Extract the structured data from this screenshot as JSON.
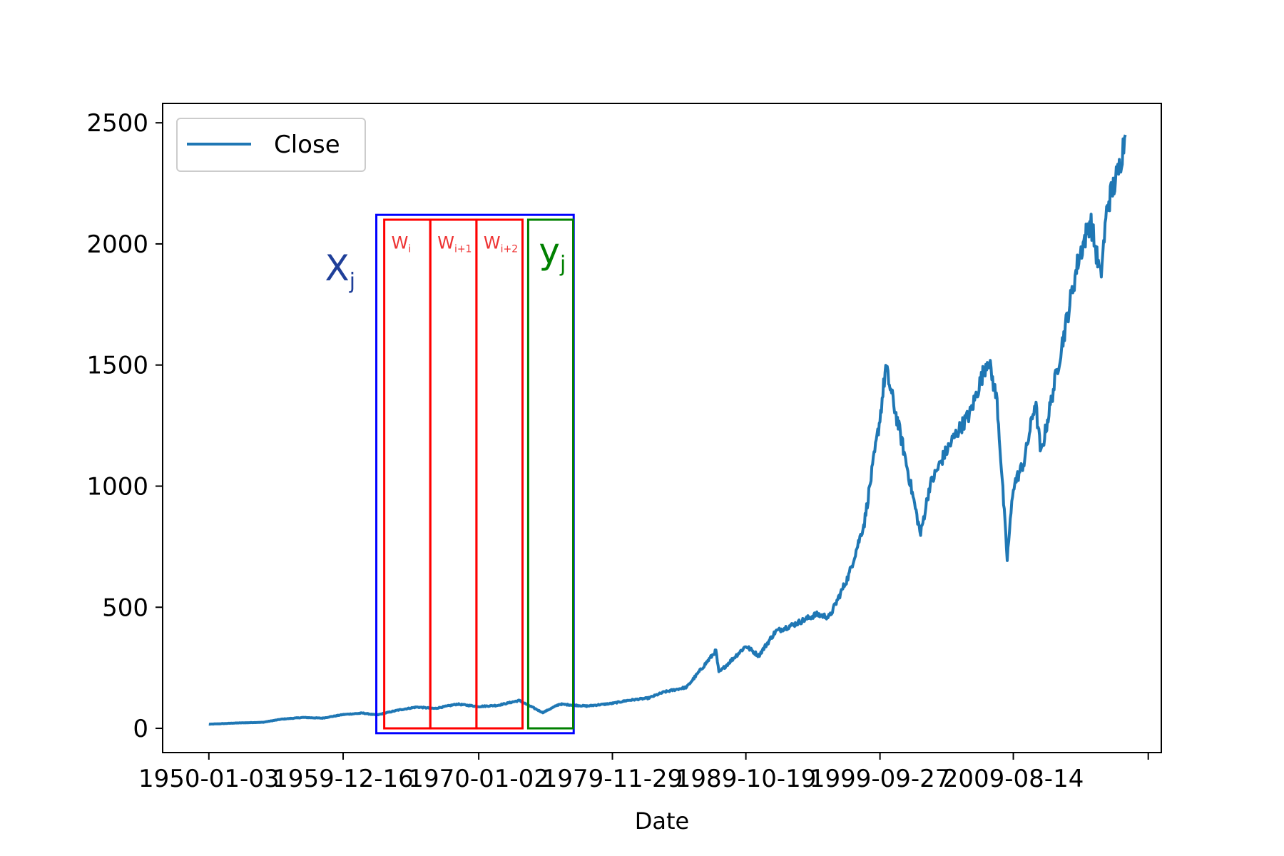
{
  "chart_data": {
    "type": "line",
    "title": "",
    "xlabel": "Date",
    "ylabel": "",
    "legend": {
      "placement": "upper-left",
      "entries": [
        "Close"
      ]
    },
    "x_ticks": [
      "1950-01-03",
      "1959-12-16",
      "1970-01-02",
      "1979-11-29",
      "1989-10-19",
      "1999-09-27",
      "2009-08-14"
    ],
    "y_ticks": [
      0,
      500,
      1000,
      1500,
      2000,
      2500
    ],
    "xlim": [
      "1946-08-01",
      "2020-08-01"
    ],
    "ylim": [
      -100,
      2580
    ],
    "grid": false,
    "colors": {
      "series": "#1f77b4",
      "window": "#ff0000",
      "input_block": "#0000ff",
      "target": "#008000",
      "input_label": "#1f3f99",
      "window_label": "#ee3333"
    },
    "series": [
      {
        "name": "Close",
        "x": [
          "1950-01-03",
          "1952-01-01",
          "1954-01-01",
          "1955-06-01",
          "1957-01-01",
          "1958-06-01",
          "1959-12-16",
          "1961-06-01",
          "1962-06-15",
          "1964-01-01",
          "1965-06-01",
          "1966-10-01",
          "1968-06-01",
          "1970-01-02",
          "1971-06-01",
          "1973-01-01",
          "1974-10-01",
          "1976-01-01",
          "1978-01-01",
          "1979-11-29",
          "1981-01-01",
          "1982-08-01",
          "1983-10-01",
          "1985-06-01",
          "1987-08-01",
          "1987-10-20",
          "1989-10-19",
          "1990-10-01",
          "1992-01-01",
          "1993-06-01",
          "1995-01-01",
          "1996-01-01",
          "1997-06-01",
          "1998-08-01",
          "1999-09-27",
          "2000-03-01",
          "2001-06-01",
          "2002-10-01",
          "2003-06-01",
          "2004-06-01",
          "2005-06-01",
          "2006-06-01",
          "2007-10-01",
          "2008-06-01",
          "2009-03-01",
          "2009-08-14",
          "2010-06-01",
          "2011-04-01",
          "2011-09-01",
          "2012-06-01",
          "2013-06-01",
          "2014-06-01",
          "2015-05-01",
          "2016-02-01",
          "2016-08-01",
          "2017-06-01",
          "2017-12-01"
        ],
        "y": [
          17,
          22,
          25,
          38,
          45,
          42,
          57,
          63,
          55,
          75,
          88,
          82,
          100,
          90,
          95,
          115,
          65,
          100,
          92,
          103,
          115,
          125,
          150,
          170,
          320,
          230,
          340,
          300,
          400,
          430,
          470,
          460,
          630,
          850,
          1280,
          1490,
          1170,
          800,
          1000,
          1120,
          1220,
          1300,
          1530,
          1350,
          700,
          1000,
          1100,
          1350,
          1130,
          1350,
          1640,
          1930,
          2100,
          1860,
          2160,
          2300,
          2450
        ]
      }
    ],
    "annotations": [
      {
        "kind": "input-block",
        "label": "X",
        "subscript": "j",
        "x_start": "1962-06-01",
        "x_end": "1977-01-15",
        "y_bottom": -20,
        "y_top": 2120
      },
      {
        "kind": "window",
        "label": "W",
        "subscript": "i",
        "x_start": "1963-01-01",
        "x_end": "1966-06-01",
        "y_bottom": 0,
        "y_top": 2100
      },
      {
        "kind": "window",
        "label": "W",
        "subscript": "i+1",
        "x_start": "1966-06-01",
        "x_end": "1969-11-01",
        "y_bottom": 0,
        "y_top": 2100
      },
      {
        "kind": "window",
        "label": "W",
        "subscript": "i+2",
        "x_start": "1969-11-01",
        "x_end": "1973-04-01",
        "y_bottom": 0,
        "y_top": 2100
      },
      {
        "kind": "target",
        "label": "y",
        "subscript": "j",
        "x_start": "1973-09-01",
        "x_end": "1977-01-01",
        "y_bottom": 0,
        "y_top": 2100
      }
    ]
  }
}
